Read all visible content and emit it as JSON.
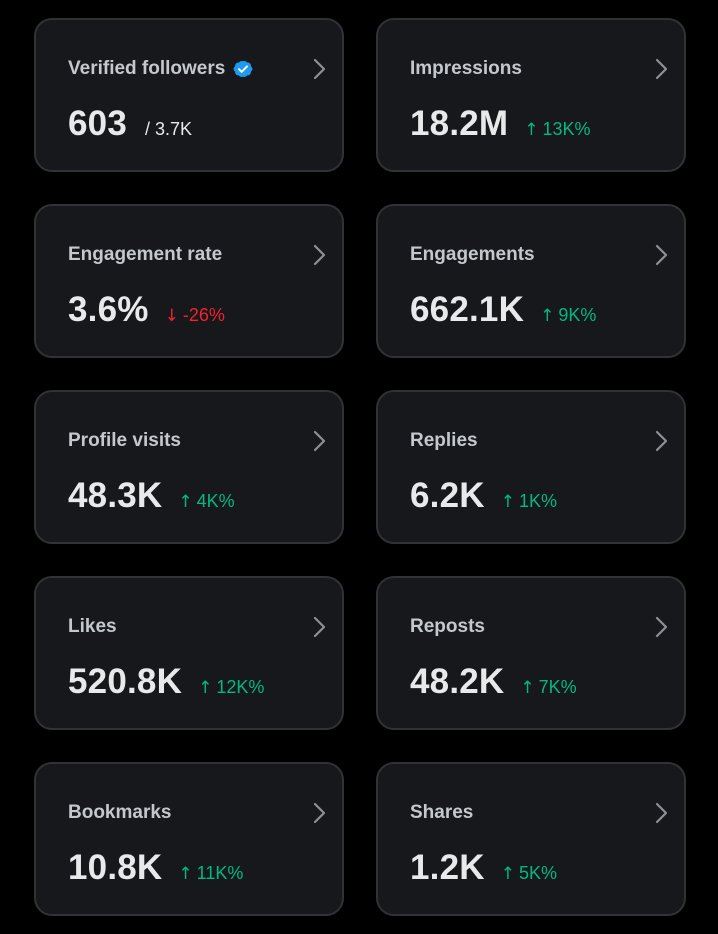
{
  "colors": {
    "background": "#000000",
    "card": "#16181c",
    "card_border": "#2f3336",
    "positive": "#00ba7c",
    "negative": "#f4212e",
    "verified_badge": "#1d9bf0"
  },
  "cards": [
    {
      "title": "Verified followers",
      "value": "603",
      "total": "/ 3.7K",
      "badge_icon": "verified-badge-icon",
      "chevron_icon": "chevron-right-icon"
    },
    {
      "title": "Impressions",
      "value": "18.2M",
      "change": "13K%",
      "direction": "up",
      "arrow_icon": "arrow-up-icon",
      "chevron_icon": "chevron-right-icon"
    },
    {
      "title": "Engagement rate",
      "value": "3.6%",
      "change": "-26%",
      "direction": "down",
      "arrow_icon": "arrow-down-icon",
      "chevron_icon": "chevron-right-icon"
    },
    {
      "title": "Engagements",
      "value": "662.1K",
      "change": "9K%",
      "direction": "up",
      "arrow_icon": "arrow-up-icon",
      "chevron_icon": "chevron-right-icon"
    },
    {
      "title": "Profile visits",
      "value": "48.3K",
      "change": "4K%",
      "direction": "up",
      "arrow_icon": "arrow-up-icon",
      "chevron_icon": "chevron-right-icon"
    },
    {
      "title": "Replies",
      "value": "6.2K",
      "change": "1K%",
      "direction": "up",
      "arrow_icon": "arrow-up-icon",
      "chevron_icon": "chevron-right-icon"
    },
    {
      "title": "Likes",
      "value": "520.8K",
      "change": "12K%",
      "direction": "up",
      "arrow_icon": "arrow-up-icon",
      "chevron_icon": "chevron-right-icon"
    },
    {
      "title": "Reposts",
      "value": "48.2K",
      "change": "7K%",
      "direction": "up",
      "arrow_icon": "arrow-up-icon",
      "chevron_icon": "chevron-right-icon"
    },
    {
      "title": "Bookmarks",
      "value": "10.8K",
      "change": "11K%",
      "direction": "up",
      "arrow_icon": "arrow-up-icon",
      "chevron_icon": "chevron-right-icon"
    },
    {
      "title": "Shares",
      "value": "1.2K",
      "change": "5K%",
      "direction": "up",
      "arrow_icon": "arrow-up-icon",
      "chevron_icon": "chevron-right-icon"
    }
  ]
}
